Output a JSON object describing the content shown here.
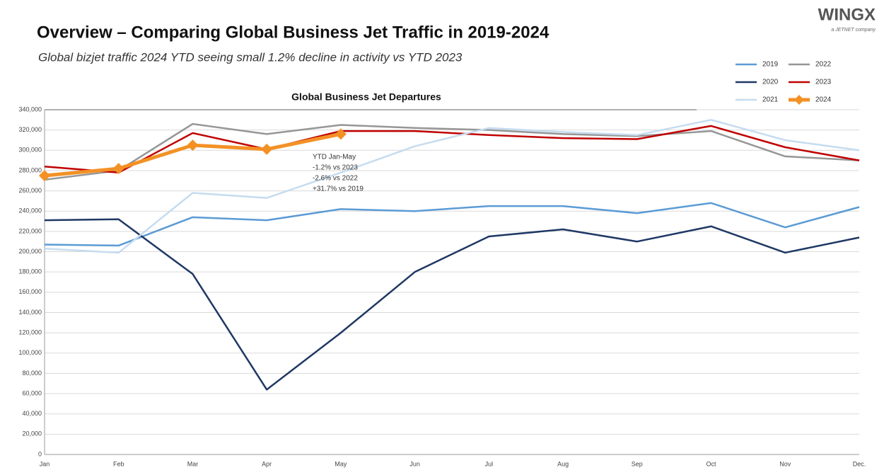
{
  "brand": {
    "name": "WINGX",
    "tagline": "a JETNET company"
  },
  "chart_data": {
    "type": "line",
    "title": "Overview – Comparing Global Business Jet Traffic in 2019-2024",
    "subtitle": "Global bizjet traffic 2024 YTD seeing small 1.2% decline in activity vs YTD 2023",
    "chart_title": "Global Business Jet Departures",
    "annotation": [
      "YTD Jan-May",
      "-1.2% vs 2023",
      "-2.6% vs 2022",
      "+31.7% vs 2019"
    ],
    "categories": [
      "Jan",
      "Feb",
      "Mar",
      "Apr",
      "May",
      "Jun",
      "Jul",
      "Aug",
      "Sep",
      "Oct",
      "Nov",
      "Dec."
    ],
    "series": [
      {
        "name": "2019",
        "color": "#5b9bd5",
        "values": [
          207000,
          206000,
          234000,
          231000,
          242000,
          240000,
          245000,
          245000,
          238000,
          248000,
          224000,
          244000
        ]
      },
      {
        "name": "2022",
        "color": "#969696",
        "values": [
          271000,
          280000,
          326000,
          316000,
          325000,
          322000,
          320000,
          316000,
          314000,
          319000,
          294000,
          290000
        ]
      },
      {
        "name": "2020",
        "color": "#1f3864",
        "values": [
          231000,
          232000,
          178000,
          64000,
          120000,
          180000,
          215000,
          222000,
          210000,
          225000,
          199000,
          214000
        ]
      },
      {
        "name": "2023",
        "color": "#c00000",
        "values": [
          284000,
          278000,
          317000,
          301000,
          319000,
          319000,
          315000,
          312000,
          311000,
          324000,
          303000,
          290000
        ]
      },
      {
        "name": "2021",
        "color": "#c5dcf0",
        "values": [
          203000,
          199000,
          258000,
          253000,
          278000,
          304000,
          322000,
          318000,
          315000,
          330000,
          310000,
          300000
        ]
      },
      {
        "name": "2024",
        "color": "#f39125",
        "values": [
          275000,
          282000,
          305000,
          301000,
          316000,
          null,
          null,
          null,
          null,
          null,
          null,
          null
        ]
      }
    ],
    "ylim": [
      0,
      340000
    ],
    "yticks": [
      0,
      {
        "value": 20000,
        "label": "20,000"
      },
      {
        "value": 40000,
        "label": "40,000"
      },
      {
        "value": 60000,
        "label": "60,000"
      },
      {
        "value": 80000,
        "label": "80,000"
      },
      {
        "value": 100000,
        "label": "100,000"
      },
      {
        "value": 120000,
        "label": "120,000"
      },
      {
        "value": 140000,
        "label": "140,000"
      },
      {
        "value": 160000,
        "label": "160,000"
      },
      {
        "value": 180000,
        "label": "180,000"
      },
      {
        "value": 200000,
        "label": "200,000"
      },
      {
        "value": 220000,
        "label": "220,000"
      },
      {
        "value": 240000,
        "label": "240,000"
      },
      {
        "value": 260000,
        "label": "260,000"
      },
      {
        "value": 280000,
        "label": "280,000"
      },
      {
        "value": 300000,
        "label": "300,000"
      },
      {
        "value": 320000,
        "label": "320,000"
      },
      {
        "value": 340000,
        "label": "340,000"
      }
    ],
    "grid": true,
    "legend": "top-right"
  }
}
